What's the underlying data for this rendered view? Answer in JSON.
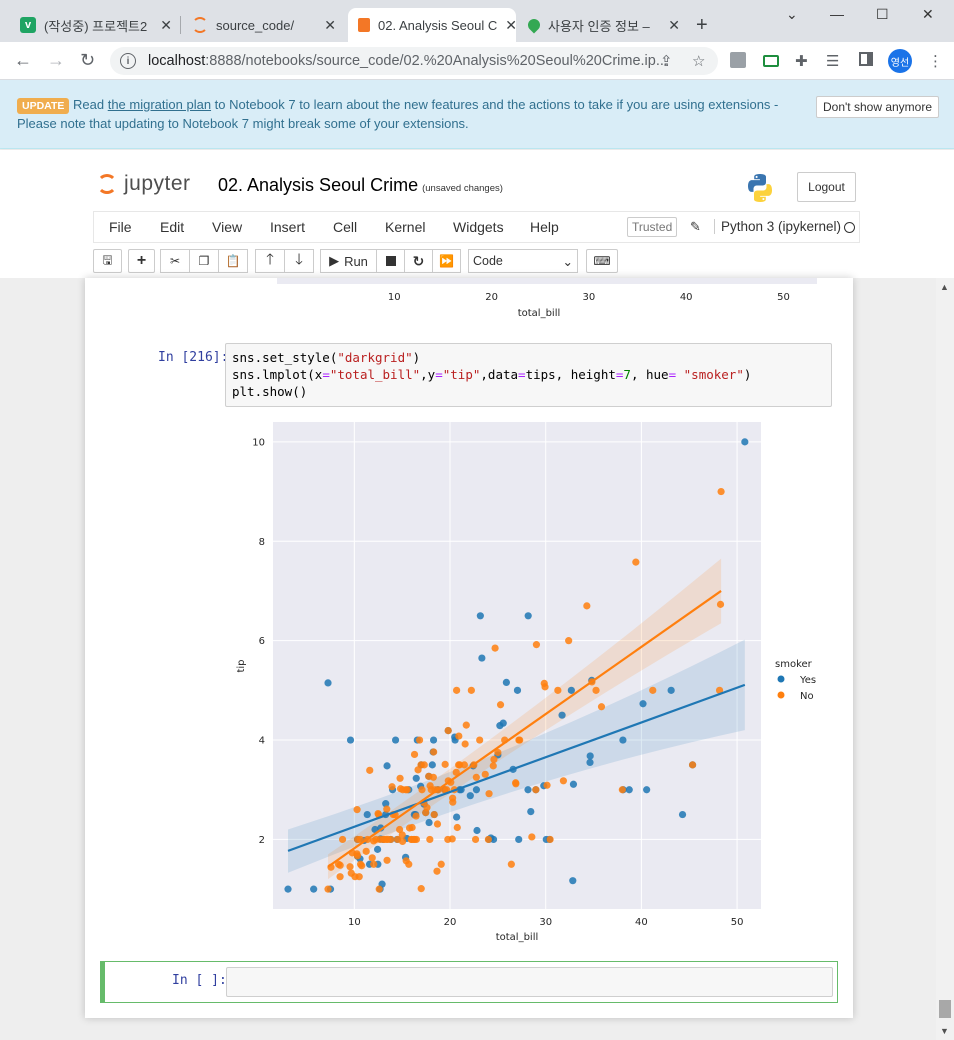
{
  "browser": {
    "tabs": [
      {
        "title": "(작성중) 프로젝트2",
        "favicon_letter": "v",
        "favicon_color": "#1fa463"
      },
      {
        "title": "source_code/",
        "favicon_color": "#f37726"
      },
      {
        "title": "02. Analysis Seoul C",
        "favicon_color": "#f37726"
      },
      {
        "title": "사용자 인증 정보 –",
        "favicon_color": "#34a853"
      }
    ],
    "url_host": "localhost",
    "url_path": ":8888/notebooks/source_code/02.%20Analysis%20Seoul%20Crime.ip...",
    "profile_label": "영선"
  },
  "banner": {
    "badge": "UPDATE",
    "text_before": "Read",
    "link": "the migration plan",
    "text_after": "to Notebook 7 to learn about the new features and the actions to take if you are using extensions -",
    "line2": "Please note that updating to Notebook 7 might break some of your extensions.",
    "dismiss": "Don't show anymore"
  },
  "jupyter": {
    "logo_text": "jupyter",
    "title": "02. Analysis Seoul Crime",
    "save_status": "(unsaved changes)",
    "logout": "Logout",
    "menu": [
      "File",
      "Edit",
      "View",
      "Insert",
      "Cell",
      "Kernel",
      "Widgets",
      "Help"
    ],
    "trusted": "Trusted",
    "kernel": "Python 3 (ipykernel)",
    "toolbar": {
      "run": "Run",
      "cell_type": "Code"
    }
  },
  "cells": {
    "prev_plot": {
      "xlabel": "total_bill",
      "ticks": [
        "10",
        "20",
        "30",
        "40",
        "50"
      ]
    },
    "code_cell": {
      "prompt": "In [216]:",
      "lines": [
        "sns.set_style(\"darkgrid\")",
        "sns.lmplot(x=\"total_bill\",y=\"tip\",data=tips, height=7, hue= \"smoker\")",
        "plt.show()"
      ]
    },
    "empty_cell": {
      "prompt": "In [ ]:"
    }
  },
  "chart_data": {
    "type": "scatter",
    "title": "",
    "xlabel": "total_bill",
    "ylabel": "tip",
    "xlim": [
      1.5,
      52.5
    ],
    "ylim": [
      0.6,
      10.4
    ],
    "xticks": [
      10,
      20,
      30,
      40,
      50
    ],
    "yticks": [
      2,
      4,
      6,
      8,
      10
    ],
    "grid": true,
    "style": "darkgrid",
    "legend": {
      "title": "smoker",
      "placement": "right"
    },
    "series": [
      {
        "name": "Yes",
        "color": "#1f77b4",
        "regression": {
          "x": [
            3.07,
            50.81
          ],
          "y": [
            1.77,
            5.11
          ],
          "ci_low": [
            1.33,
            4.2
          ],
          "ci_high": [
            2.2,
            6.02
          ]
        },
        "points": [
          [
            3.07,
            1.0
          ],
          [
            5.75,
            1.0
          ],
          [
            7.25,
            5.15
          ],
          [
            7.51,
            1.0
          ],
          [
            9.6,
            4.0
          ],
          [
            10.33,
            2.0
          ],
          [
            10.34,
            1.66
          ],
          [
            10.59,
            1.61
          ],
          [
            11.02,
            1.98
          ],
          [
            11.59,
            1.5
          ],
          [
            11.35,
            2.5
          ],
          [
            12.16,
            2.2
          ],
          [
            12.43,
            1.8
          ],
          [
            12.46,
            1.5
          ],
          [
            12.74,
            2.01
          ],
          [
            12.76,
            2.23
          ],
          [
            12.69,
            1.0
          ],
          [
            12.9,
            1.1
          ],
          [
            13.0,
            2.0
          ],
          [
            13.27,
            2.5
          ],
          [
            13.28,
            2.72
          ],
          [
            13.42,
            3.48
          ],
          [
            14.0,
            3.0
          ],
          [
            14.31,
            4.0
          ],
          [
            14.48,
            2.0
          ],
          [
            15.36,
            1.64
          ],
          [
            15.69,
            3.0
          ],
          [
            16.27,
            2.5
          ],
          [
            16.4,
            2.5
          ],
          [
            16.47,
            3.23
          ],
          [
            16.58,
            4.0
          ],
          [
            16.99,
            3.5
          ],
          [
            17.29,
            2.71
          ],
          [
            17.81,
            2.34
          ],
          [
            18.15,
            3.5
          ],
          [
            18.24,
            3.76
          ],
          [
            18.28,
            4.0
          ],
          [
            18.35,
            2.5
          ],
          [
            18.71,
            3.0
          ],
          [
            19.44,
            3.0
          ],
          [
            19.81,
            4.19
          ],
          [
            20.49,
            4.06
          ],
          [
            20.53,
            4.0
          ],
          [
            20.69,
            2.45
          ],
          [
            21.01,
            3.0
          ],
          [
            21.16,
            3.0
          ],
          [
            22.42,
            3.48
          ],
          [
            22.76,
            3.0
          ],
          [
            22.82,
            2.18
          ],
          [
            23.17,
            6.5
          ],
          [
            23.33,
            5.65
          ],
          [
            24.06,
            2.0
          ],
          [
            24.27,
            2.03
          ],
          [
            24.55,
            2.0
          ],
          [
            25.21,
            4.29
          ],
          [
            25.56,
            4.34
          ],
          [
            25.89,
            5.16
          ],
          [
            26.59,
            3.41
          ],
          [
            27.05,
            5.0
          ],
          [
            27.18,
            2.0
          ],
          [
            28.15,
            3.0
          ],
          [
            28.17,
            6.5
          ],
          [
            28.44,
            2.56
          ],
          [
            28.97,
            3.0
          ],
          [
            29.8,
            3.08
          ],
          [
            30.06,
            2.0
          ],
          [
            30.4,
            2.0
          ],
          [
            31.71,
            4.5
          ],
          [
            32.68,
            5.0
          ],
          [
            32.9,
            3.11
          ],
          [
            32.83,
            1.17
          ],
          [
            34.63,
            3.55
          ],
          [
            34.65,
            3.68
          ],
          [
            34.81,
            5.2
          ],
          [
            38.07,
            4.0
          ],
          [
            38.73,
            3.0
          ],
          [
            40.55,
            3.0
          ],
          [
            40.17,
            4.73
          ],
          [
            43.11,
            5.0
          ],
          [
            44.3,
            2.5
          ],
          [
            45.35,
            3.5
          ],
          [
            50.81,
            10.0
          ],
          [
            15.48,
            2.02
          ],
          [
            16.93,
            3.07
          ],
          [
            17.78,
            3.27
          ],
          [
            22.12,
            2.88
          ],
          [
            38.1,
            3.0
          ],
          [
            25.0,
            3.7
          ],
          [
            13.81,
            2.0
          ],
          [
            17.46,
            2.54
          ]
        ]
      },
      {
        "name": "No",
        "color": "#ff7f0e",
        "regression": {
          "x": [
            7.25,
            48.33
          ],
          "y": [
            1.45,
            7.0
          ],
          "ci_low": [
            1.2,
            6.35
          ],
          "ci_high": [
            1.7,
            7.65
          ]
        },
        "points": [
          [
            7.25,
            1.0
          ],
          [
            7.56,
            1.44
          ],
          [
            8.35,
            1.5
          ],
          [
            8.51,
            1.25
          ],
          [
            8.52,
            1.48
          ],
          [
            8.77,
            2.0
          ],
          [
            9.55,
            1.45
          ],
          [
            9.68,
            1.32
          ],
          [
            9.78,
            1.73
          ],
          [
            10.07,
            1.25
          ],
          [
            10.27,
            1.71
          ],
          [
            10.29,
            2.6
          ],
          [
            10.33,
            1.67
          ],
          [
            10.34,
            2.0
          ],
          [
            10.51,
            1.25
          ],
          [
            10.63,
            2.0
          ],
          [
            10.65,
            1.5
          ],
          [
            10.77,
            1.47
          ],
          [
            11.24,
            1.76
          ],
          [
            11.38,
            2.0
          ],
          [
            11.61,
            3.39
          ],
          [
            11.87,
            1.63
          ],
          [
            12.02,
            1.97
          ],
          [
            12.03,
            1.5
          ],
          [
            12.26,
            2.0
          ],
          [
            12.48,
            2.52
          ],
          [
            12.54,
            2.5
          ],
          [
            12.6,
            1.0
          ],
          [
            12.69,
            2.0
          ],
          [
            13.03,
            2.0
          ],
          [
            13.13,
            2.0
          ],
          [
            13.37,
            2.0
          ],
          [
            13.39,
            2.61
          ],
          [
            13.42,
            1.58
          ],
          [
            13.81,
            2.0
          ],
          [
            13.94,
            3.06
          ],
          [
            14.07,
            2.5
          ],
          [
            14.26,
            2.5
          ],
          [
            14.52,
            2.0
          ],
          [
            14.73,
            2.2
          ],
          [
            14.78,
            3.23
          ],
          [
            15.01,
            2.09
          ],
          [
            15.04,
            1.96
          ],
          [
            15.38,
            3.0
          ],
          [
            15.42,
            1.57
          ],
          [
            15.53,
            3.0
          ],
          [
            15.77,
            2.23
          ],
          [
            15.95,
            2.0
          ],
          [
            16.0,
            2.0
          ],
          [
            16.21,
            2.0
          ],
          [
            16.29,
            3.71
          ],
          [
            16.31,
            2.0
          ],
          [
            16.45,
            2.47
          ],
          [
            16.49,
            2.0
          ],
          [
            16.66,
            3.4
          ],
          [
            16.82,
            4.0
          ],
          [
            16.97,
            3.5
          ],
          [
            16.99,
            1.01
          ],
          [
            17.07,
            3.0
          ],
          [
            17.31,
            3.5
          ],
          [
            17.46,
            2.54
          ],
          [
            17.59,
            2.64
          ],
          [
            17.78,
            3.27
          ],
          [
            17.89,
            2.0
          ],
          [
            17.92,
            3.08
          ],
          [
            18.04,
            3.0
          ],
          [
            18.26,
            3.25
          ],
          [
            18.29,
            3.76
          ],
          [
            18.43,
            3.0
          ],
          [
            18.64,
            1.36
          ],
          [
            18.69,
            2.31
          ],
          [
            18.78,
            3.0
          ],
          [
            19.08,
            1.5
          ],
          [
            19.44,
            3.0
          ],
          [
            19.49,
            3.51
          ],
          [
            19.65,
            3.0
          ],
          [
            19.77,
            2.0
          ],
          [
            19.82,
            3.18
          ],
          [
            20.08,
            3.15
          ],
          [
            20.23,
            2.01
          ],
          [
            20.29,
            2.75
          ],
          [
            20.45,
            3.0
          ],
          [
            20.65,
            3.35
          ],
          [
            20.69,
            5.0
          ],
          [
            20.76,
            2.24
          ],
          [
            20.9,
            3.5
          ],
          [
            20.92,
            4.08
          ],
          [
            21.01,
            3.5
          ],
          [
            21.5,
            3.5
          ],
          [
            21.58,
            3.92
          ],
          [
            21.7,
            4.3
          ],
          [
            22.23,
            5.0
          ],
          [
            22.49,
            3.5
          ],
          [
            22.67,
            2.0
          ],
          [
            23.1,
            4.0
          ],
          [
            23.68,
            3.31
          ],
          [
            24.01,
            2.0
          ],
          [
            24.08,
            2.92
          ],
          [
            24.52,
            3.48
          ],
          [
            24.59,
            3.61
          ],
          [
            24.71,
            5.85
          ],
          [
            25.0,
            3.75
          ],
          [
            25.28,
            4.71
          ],
          [
            25.71,
            4.0
          ],
          [
            26.41,
            1.5
          ],
          [
            26.86,
            3.14
          ],
          [
            26.88,
            3.12
          ],
          [
            27.2,
            4.0
          ],
          [
            27.28,
            4.0
          ],
          [
            28.55,
            2.05
          ],
          [
            28.97,
            3.0
          ],
          [
            29.03,
            5.92
          ],
          [
            29.85,
            5.14
          ],
          [
            29.93,
            5.07
          ],
          [
            30.14,
            3.09
          ],
          [
            30.46,
            2.0
          ],
          [
            31.27,
            5.0
          ],
          [
            31.85,
            3.18
          ],
          [
            32.4,
            6.0
          ],
          [
            34.3,
            6.7
          ],
          [
            34.83,
            5.17
          ],
          [
            35.26,
            5.0
          ],
          [
            35.83,
            4.67
          ],
          [
            38.01,
            3.0
          ],
          [
            39.42,
            7.58
          ],
          [
            41.19,
            5.0
          ],
          [
            45.35,
            3.5
          ],
          [
            48.17,
            5.0
          ],
          [
            48.27,
            6.73
          ],
          [
            48.33,
            9.0
          ],
          [
            17.26,
            2.74
          ],
          [
            16.04,
            2.24
          ],
          [
            15.06,
            3.0
          ],
          [
            19.81,
            4.19
          ],
          [
            14.83,
            3.02
          ],
          [
            20.27,
            2.83
          ],
          [
            15.69,
            1.5
          ],
          [
            18.35,
            2.5
          ],
          [
            13.51,
            2.0
          ],
          [
            22.75,
            3.25
          ]
        ]
      }
    ]
  },
  "prev_chart": {
    "type": "scatter",
    "xlabel": "total_bill",
    "xticks": [
      10,
      20,
      30,
      40,
      50
    ]
  }
}
